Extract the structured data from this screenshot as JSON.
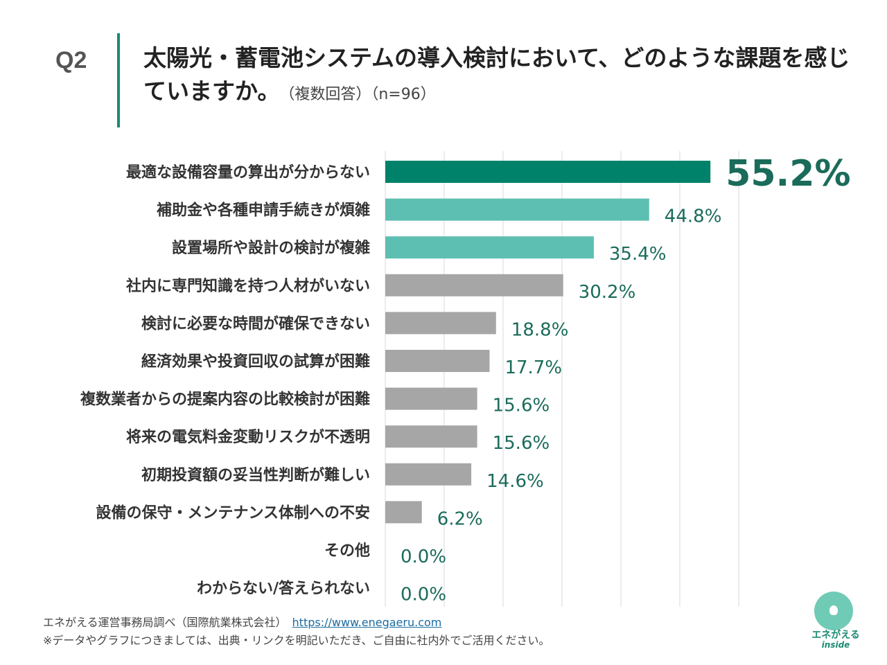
{
  "header": {
    "qnum": "Q2",
    "title": "太陽光・蓄電池システムの導入検討において、どのような課題を感じていますか。",
    "subtitle": "（複数回答）（n=96）"
  },
  "chart_data": {
    "type": "bar",
    "orientation": "horizontal",
    "categories": [
      "最適な設備容量の算出が分からない",
      "補助金や各種申請手続きが煩雑",
      "設置場所や設計の検討が複雑",
      "社内に専門知識を持つ人材がいない",
      "検討に必要な時間が確保できない",
      "経済効果や投資回収の試算が困難",
      "複数業者からの提案内容の比較検討が困難",
      "将来の電気料金変動リスクが不透明",
      "初期投資額の妥当性判断が難しい",
      "設備の保守・メンテナンス体制への不安",
      "その他",
      "わからない/答えられない"
    ],
    "values": [
      55.2,
      44.8,
      35.4,
      30.2,
      18.8,
      17.7,
      15.6,
      15.6,
      14.6,
      6.2,
      0.0,
      0.0
    ],
    "labels": [
      "55.2%",
      "44.8%",
      "35.4%",
      "30.2%",
      "18.8%",
      "17.7%",
      "15.6%",
      "15.6%",
      "14.6%",
      "6.2%",
      "0.0%",
      "0.0%"
    ],
    "xlim": [
      0,
      60
    ],
    "grid": true,
    "colors": {
      "top": "#00826a",
      "second": "#5dbfb1",
      "other": "#a6a6a6",
      "label": "#1a6b5a"
    }
  },
  "footer": {
    "source": "エネがえる運営事務局調べ（国際航業株式会社）",
    "link": "https://www.enegaeru.com",
    "note": "※データやグラフにつきましては、出典・リンクを明記いただき、ご自由に社内外でご活用ください。"
  },
  "logo": {
    "name": "エネがえる",
    "tag": "inside"
  }
}
